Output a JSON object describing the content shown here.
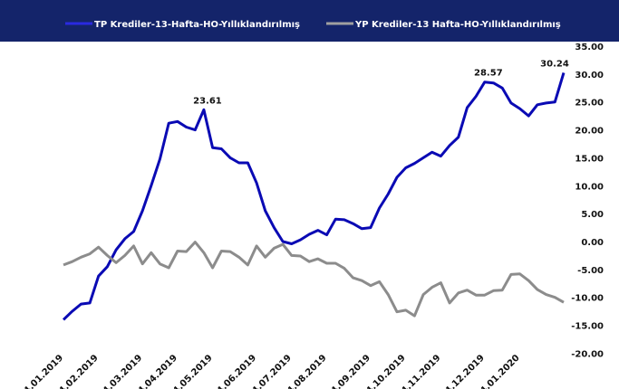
{
  "chart_data": {
    "type": "line",
    "categories": [
      "04.01.2019",
      null,
      null,
      null,
      "04.02.2019",
      null,
      null,
      null,
      null,
      "04.03.2019",
      null,
      null,
      null,
      "04.04.2019",
      null,
      null,
      null,
      "04.05.2019",
      null,
      null,
      null,
      null,
      "04.06.2019",
      null,
      null,
      null,
      "04.07.2019",
      null,
      null,
      null,
      "04.08.2019",
      null,
      null,
      null,
      null,
      "04.09.2019",
      null,
      null,
      null,
      "04.10.2019",
      null,
      null,
      null,
      "04.11.2019",
      null,
      null,
      null,
      null,
      "04.12.2019",
      null,
      null,
      null,
      "04.01.2020",
      null,
      null,
      null,
      null,
      null
    ],
    "series": [
      {
        "name": "TP Krediler-13-Hafta-HO-Yıllıklandırılmış",
        "color": "#0a0ab4",
        "values": [
          -14.0,
          -12.5,
          -11.2,
          -11.0,
          -6.2,
          -4.5,
          -1.5,
          0.5,
          1.8,
          5.5,
          10,
          14.8,
          21.2,
          21.5,
          20.5,
          20.0,
          23.61,
          16.8,
          16.6,
          15,
          14.1,
          14.1,
          10.5,
          5.5,
          2.5,
          0,
          -0.4,
          0.3,
          1.3,
          2,
          1.2,
          4,
          3.9,
          3.2,
          2.3,
          2.5,
          6,
          8.5,
          11.5,
          13.2,
          14,
          15,
          16,
          15.3,
          17.2,
          18.7,
          24,
          26,
          28.57,
          28.4,
          27.5,
          24.8,
          23.8,
          22.5,
          24.5,
          24.8,
          25,
          30.24
        ],
        "value_labels": [
          null,
          null,
          null,
          null,
          null,
          null,
          null,
          null,
          null,
          null,
          null,
          null,
          null,
          null,
          null,
          null,
          "23.61",
          null,
          null,
          null,
          null,
          null,
          null,
          null,
          null,
          null,
          null,
          null,
          null,
          null,
          null,
          null,
          null,
          null,
          null,
          null,
          null,
          null,
          null,
          null,
          null,
          null,
          null,
          null,
          null,
          null,
          null,
          null,
          "28.57",
          null,
          null,
          null,
          null,
          null,
          null,
          null,
          null,
          "30.24"
        ]
      },
      {
        "name": "YP Krediler-13 Hafta-HO-Yıllıklandırılmış",
        "color": "#8c8c8c",
        "values": [
          -4.2,
          -3.6,
          -2.8,
          -2.2,
          -1.0,
          -2.5,
          -3.8,
          -2.5,
          -0.8,
          -4.0,
          -2.0,
          -4.0,
          -4.7,
          -1.7,
          -1.8,
          -0.1,
          -2.0,
          -4.7,
          -1.7,
          -1.8,
          -2.8,
          -4.2,
          -0.8,
          -2.8,
          -1.2,
          -0.5,
          -2.5,
          -2.6,
          -3.6,
          -3.1,
          -3.9,
          -3.9,
          -4.8,
          -6.5,
          -7.0,
          -7.9,
          -7.2,
          -9.5,
          -12.6,
          -12.3,
          -13.3,
          -9.5,
          -8.2,
          -7.4,
          -11.0,
          -9.2,
          -8.7,
          -9.6,
          -9.6,
          -8.8,
          -8.7,
          -5.9,
          -5.8,
          -7.0,
          -8.6,
          -9.5,
          -10.0,
          -10.9
        ]
      }
    ],
    "ylim": [
      -20,
      35
    ],
    "yticks": [
      {
        "value": -20,
        "label": "-20.00"
      },
      {
        "value": -15,
        "label": "-15.00"
      },
      {
        "value": -10,
        "label": "-10.00"
      },
      {
        "value": -5,
        "label": "-5.00"
      },
      {
        "value": 0,
        "label": "0.00"
      },
      {
        "value": 5,
        "label": "5.00"
      },
      {
        "value": 10,
        "label": "10.00"
      },
      {
        "value": 15,
        "label": "15.00"
      },
      {
        "value": 20,
        "label": "20.00"
      },
      {
        "value": 25,
        "label": "25.00"
      },
      {
        "value": 30,
        "label": "30.00"
      },
      {
        "value": 35,
        "label": "35.00"
      }
    ],
    "y_axis_side": "right",
    "grid": false,
    "legend": "top"
  }
}
